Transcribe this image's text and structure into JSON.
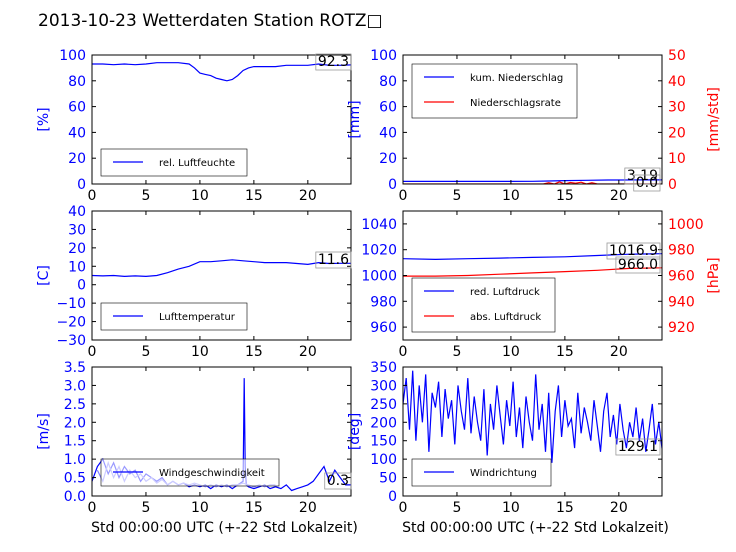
{
  "title": "2013-10-23 Wetterdaten Station ROTZ□",
  "colors": {
    "primary": "#0000ff",
    "secondary": "#ff0000",
    "light": "#8080ff"
  },
  "chart_data": [
    {
      "id": "humidity",
      "type": "line",
      "xlim": [
        0,
        24
      ],
      "ylim": [
        0,
        100
      ],
      "xticks": [
        "0",
        "5",
        "10",
        "15",
        "20"
      ],
      "yticks": [
        "0",
        "20",
        "40",
        "60",
        "80",
        "100"
      ],
      "ylabel": "[%]",
      "legend": {
        "placement": "lower-left",
        "entries": [
          "rel. Luftfeuchte"
        ]
      },
      "annotations": [
        "92.3"
      ],
      "series": [
        {
          "name": "rel. Luftfeuchte",
          "color": "#0000ff",
          "x": [
            0,
            1,
            2,
            3,
            4,
            5,
            6,
            7,
            8,
            9,
            9.5,
            10,
            10.5,
            11,
            11.5,
            12,
            12.5,
            13,
            13.5,
            14,
            14.5,
            15,
            16,
            17,
            18,
            19,
            20,
            21,
            22,
            23,
            24
          ],
          "y": [
            93,
            93,
            92.5,
            93,
            92.5,
            93,
            94,
            94,
            94,
            93,
            90,
            86,
            85,
            84,
            82,
            81,
            80,
            81,
            84,
            88,
            90,
            91,
            91,
            91,
            92,
            92,
            92,
            93,
            92,
            92,
            92.3
          ]
        }
      ]
    },
    {
      "id": "precip",
      "type": "line",
      "xlim": [
        0,
        24
      ],
      "ylim": [
        0,
        100
      ],
      "y2lim": [
        0,
        50
      ],
      "xticks": [
        "0",
        "5",
        "10",
        "15",
        "20"
      ],
      "yticks": [
        "0",
        "20",
        "40",
        "60",
        "80",
        "100"
      ],
      "y2ticks": [
        "0",
        "10",
        "20",
        "30",
        "40",
        "50"
      ],
      "ylabel": "[mm]",
      "y2label": "[mm/std]",
      "legend": {
        "placement": "upper-left",
        "entries": [
          "kum. Niederschlag",
          "Niederschlagsrate"
        ]
      },
      "annotations": [
        "3.19",
        "0.0"
      ],
      "series": [
        {
          "name": "kum. Niederschlag",
          "color": "#0000ff",
          "axis": "y",
          "x": [
            0,
            4,
            8,
            12,
            13.5,
            15,
            17,
            19,
            20,
            22,
            24
          ],
          "y": [
            2,
            2,
            2,
            2.1,
            2.3,
            2.6,
            2.9,
            3.1,
            3.1,
            3.19,
            3.19
          ]
        },
        {
          "name": "Niederschlagsrate",
          "color": "#ff0000",
          "axis": "y2",
          "x": [
            0,
            13,
            13.5,
            14,
            14.5,
            15,
            15.5,
            16,
            16.5,
            17,
            17.5,
            18,
            18.5,
            24
          ],
          "y": [
            0,
            0,
            0.5,
            0,
            0.8,
            0,
            0.6,
            0.3,
            0.7,
            0,
            0.5,
            0,
            0,
            0
          ]
        }
      ]
    },
    {
      "id": "temperature",
      "type": "line",
      "xlim": [
        0,
        24
      ],
      "ylim": [
        -30,
        40
      ],
      "xticks": [
        "0",
        "5",
        "10",
        "15",
        "20"
      ],
      "yticks": [
        "−30",
        "−20",
        "−10",
        "0",
        "10",
        "20",
        "30",
        "40"
      ],
      "ylabel": "[C]",
      "legend": {
        "placement": "lower-left",
        "entries": [
          "Lufttemperatur"
        ]
      },
      "annotations": [
        "11.6"
      ],
      "series": [
        {
          "name": "Lufttemperatur",
          "color": "#0000ff",
          "x": [
            0,
            1,
            2,
            3,
            4,
            5,
            6,
            7,
            8,
            9,
            10,
            11,
            12,
            13,
            14,
            15,
            16,
            17,
            18,
            19,
            20,
            21,
            22,
            23,
            24
          ],
          "y": [
            5,
            4.8,
            5,
            4.5,
            4.8,
            4.5,
            5,
            6.5,
            8.5,
            10,
            12.5,
            12.5,
            13,
            13.5,
            13,
            12.5,
            12,
            12,
            12,
            11.5,
            11,
            12,
            11.5,
            11.6,
            11.6
          ]
        }
      ]
    },
    {
      "id": "pressure",
      "type": "line",
      "xlim": [
        0,
        24
      ],
      "ylim": [
        950,
        1050
      ],
      "y2lim": [
        910,
        1010
      ],
      "xticks": [
        "0",
        "5",
        "10",
        "15",
        "20"
      ],
      "yticks": [
        "960",
        "980",
        "1000",
        "1020",
        "1040"
      ],
      "y2ticks": [
        "920",
        "940",
        "960",
        "980",
        "1000"
      ],
      "y2label": "[hPa]",
      "legend": {
        "placement": "lower-left",
        "entries": [
          "red. Luftdruck",
          "abs. Luftdruck"
        ]
      },
      "annotations": [
        "1016.9",
        "966.0"
      ],
      "series": [
        {
          "name": "red. Luftdruck",
          "color": "#0000ff",
          "axis": "y",
          "x": [
            0,
            3,
            6,
            9,
            12,
            15,
            18,
            21,
            24
          ],
          "y": [
            1013,
            1012.5,
            1013,
            1013.5,
            1014,
            1014.5,
            1015.5,
            1016.5,
            1016.9
          ]
        },
        {
          "name": "abs. Luftdruck",
          "color": "#ff0000",
          "axis": "y2",
          "x": [
            0,
            3,
            6,
            9,
            12,
            15,
            18,
            21,
            24
          ],
          "y": [
            959.5,
            959.5,
            960,
            961,
            962,
            963,
            964,
            965.5,
            966
          ]
        }
      ]
    },
    {
      "id": "windspeed",
      "type": "line",
      "xlim": [
        0,
        24
      ],
      "ylim": [
        0,
        3.5
      ],
      "xticks": [
        "0",
        "5",
        "10",
        "15",
        "20"
      ],
      "yticks": [
        "0.0",
        "0.5",
        "1.0",
        "1.5",
        "2.0",
        "2.5",
        "3.0",
        "3.5"
      ],
      "ylabel": "[m/s]",
      "xlabel": "Std 00:00:00 UTC (+-22 Std Lokalzeit)",
      "legend": {
        "placement": "lower-left",
        "entries": [
          "Windgeschwindigkeit"
        ]
      },
      "annotations": [
        "0.3"
      ],
      "series": [
        {
          "name": "Windgeschwindigkeit",
          "color": "#0000ff",
          "x": [
            0,
            0.5,
            1,
            1.5,
            2,
            2.5,
            3,
            3.5,
            4,
            4.5,
            5,
            5.5,
            6,
            6.5,
            7,
            7.5,
            8,
            8.5,
            9,
            9.5,
            10,
            10.5,
            11,
            11.5,
            12,
            12.5,
            13,
            13.5,
            14,
            14.1,
            14.2,
            14.3,
            14.5,
            15,
            15.5,
            16,
            16.5,
            17,
            17.5,
            18,
            18.5,
            19,
            19.5,
            20,
            20.5,
            21,
            21.5,
            22,
            22.5,
            23,
            23.5,
            24
          ],
          "y": [
            0.4,
            0.8,
            1.0,
            0.6,
            0.9,
            0.5,
            0.8,
            0.6,
            0.7,
            0.4,
            0.6,
            0.5,
            0.4,
            0.5,
            0.3,
            0.4,
            0.3,
            0.35,
            0.25,
            0.3,
            0.25,
            0.3,
            0.2,
            0.3,
            0.25,
            0.3,
            0.2,
            0.3,
            0.4,
            3.2,
            0.8,
            0.3,
            0.25,
            0.2,
            0.25,
            0.3,
            0.2,
            0.25,
            0.2,
            0.3,
            0.15,
            0.2,
            0.25,
            0.3,
            0.4,
            0.6,
            0.8,
            0.4,
            0.7,
            0.5,
            0.3,
            0.3
          ]
        },
        {
          "name": "",
          "color": "#8080ff",
          "x": [
            0.5,
            1,
            1.5,
            2,
            2.5,
            3,
            3.5,
            4,
            4.5,
            5,
            5.5,
            6,
            6.5,
            7,
            7.5,
            8,
            8.5,
            9,
            9.5,
            10,
            10.5,
            11,
            11.5,
            12,
            12.5,
            13,
            13.5,
            14,
            14.5,
            15,
            15.5,
            16,
            16.5,
            17
          ],
          "y": [
            0.7,
            0.4,
            0.9,
            0.5,
            0.8,
            0.4,
            0.7,
            0.5,
            0.6,
            0.4,
            0.5,
            0.35,
            0.45,
            0.3,
            0.4,
            0.3,
            0.35,
            0.3,
            0.35,
            0.3,
            0.25,
            0.3,
            0.25,
            0.3,
            0.25,
            0.3,
            0.3,
            0.35,
            0.3,
            0.25,
            0.3,
            0.25,
            0.3,
            0.3
          ]
        }
      ]
    },
    {
      "id": "winddir",
      "type": "line",
      "xlim": [
        0,
        24
      ],
      "ylim": [
        0,
        350
      ],
      "xticks": [
        "0",
        "5",
        "10",
        "15",
        "20"
      ],
      "yticks": [
        "0",
        "50",
        "100",
        "150",
        "200",
        "250",
        "300",
        "350"
      ],
      "ylabel": "[deg]",
      "xlabel": "Std 00:00:00 UTC (+-22 Std Lokalzeit)",
      "legend": {
        "placement": "lower-left",
        "entries": [
          "Windrichtung"
        ]
      },
      "annotations": [
        "129.1"
      ],
      "series": [
        {
          "name": "Windrichtung",
          "color": "#0000ff",
          "x": [
            0,
            0.3,
            0.6,
            0.9,
            1.2,
            1.5,
            1.8,
            2.1,
            2.4,
            2.7,
            3,
            3.3,
            3.6,
            3.9,
            4.2,
            4.5,
            4.8,
            5.1,
            5.4,
            5.7,
            6,
            6.3,
            6.6,
            6.9,
            7.2,
            7.5,
            7.8,
            8.1,
            8.4,
            8.7,
            9,
            9.3,
            9.6,
            9.9,
            10.2,
            10.5,
            10.8,
            11.1,
            11.4,
            11.7,
            12,
            12.3,
            12.6,
            12.9,
            13.2,
            13.5,
            13.8,
            14.1,
            14.4,
            14.7,
            15,
            15.3,
            15.6,
            15.9,
            16.2,
            16.5,
            16.8,
            17.1,
            17.4,
            17.7,
            18,
            18.3,
            18.6,
            18.9,
            19.2,
            19.5,
            19.8,
            20.1,
            20.4,
            20.7,
            21,
            21.3,
            21.6,
            21.9,
            22.2,
            22.5,
            22.8,
            23.1,
            23.4,
            23.7,
            24
          ],
          "y": [
            250,
            320,
            180,
            340,
            150,
            300,
            200,
            330,
            120,
            280,
            240,
            310,
            160,
            290,
            210,
            260,
            140,
            300,
            230,
            180,
            320,
            170,
            270,
            200,
            150,
            290,
            110,
            250,
            180,
            300,
            220,
            140,
            260,
            190,
            310,
            160,
            240,
            130,
            270,
            200,
            150,
            330,
            180,
            250,
            120,
            280,
            90,
            230,
            300,
            160,
            260,
            190,
            210,
            130,
            280,
            170,
            240,
            200,
            150,
            260,
            190,
            120,
            230,
            280,
            160,
            220,
            140,
            250,
            180,
            130,
            200,
            160,
            240,
            150,
            210,
            120,
            180,
            250,
            140,
            200,
            129.1
          ]
        }
      ]
    }
  ]
}
